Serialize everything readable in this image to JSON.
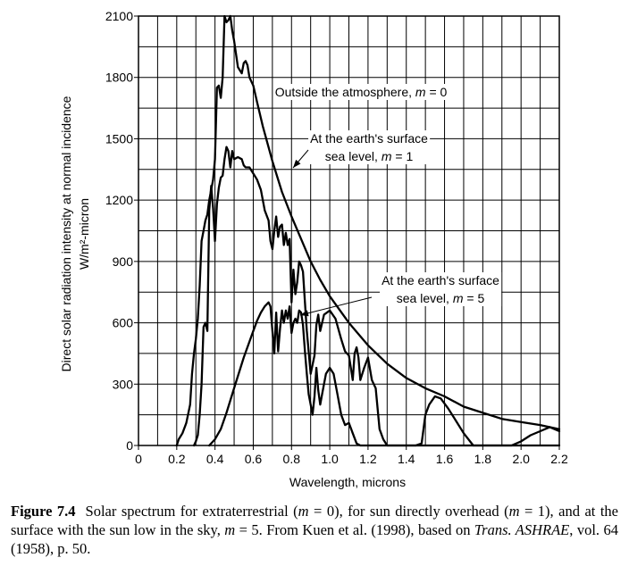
{
  "chart_data": {
    "type": "line",
    "xlabel": "Wavelength, microns",
    "ylabel_line1": "Direct solar radiation intensity at normal incidence",
    "ylabel_line2": "W/m²-micron",
    "xlim": [
      0,
      2.2
    ],
    "ylim": [
      0,
      2100
    ],
    "x_ticks": [
      "0",
      "0.2",
      "0.4",
      "0.6",
      "0.8",
      "1.0",
      "1.2",
      "1.4",
      "1.6",
      "1.8",
      "2.0",
      "2.2"
    ],
    "y_ticks": [
      "0",
      "300",
      "600",
      "900",
      "1200",
      "1500",
      "1800",
      "2100"
    ],
    "grid": true,
    "annotations": [
      {
        "lines": [
          "Outside the atmosphere, m = 0"
        ],
        "series": "m0"
      },
      {
        "lines": [
          "At the earth's surface",
          "sea level, m = 1"
        ],
        "series": "m1"
      },
      {
        "lines": [
          "At the earth's surface",
          "sea level, m = 5"
        ],
        "series": "m5"
      }
    ],
    "series": [
      {
        "name": "Outside the atmosphere, m = 0",
        "key": "m0",
        "x": [
          0.2,
          0.21,
          0.23,
          0.25,
          0.27,
          0.28,
          0.29,
          0.3,
          0.31,
          0.32,
          0.33,
          0.34,
          0.35,
          0.36,
          0.37,
          0.38,
          0.39,
          0.4,
          0.41,
          0.42,
          0.43,
          0.44,
          0.45,
          0.46,
          0.47,
          0.48,
          0.49,
          0.5,
          0.52,
          0.54,
          0.55,
          0.56,
          0.57,
          0.58,
          0.6,
          0.62,
          0.65,
          0.7,
          0.75,
          0.8,
          0.85,
          0.9,
          0.95,
          1.0,
          1.1,
          1.2,
          1.3,
          1.4,
          1.5,
          1.6,
          1.7,
          1.8,
          1.9,
          2.0,
          2.1,
          2.2
        ],
        "y": [
          0,
          30,
          60,
          110,
          200,
          350,
          450,
          520,
          620,
          780,
          1000,
          1050,
          1100,
          1130,
          1200,
          1250,
          1300,
          1400,
          1750,
          1760,
          1700,
          1800,
          2100,
          2070,
          2080,
          2100,
          2030,
          1980,
          1850,
          1820,
          1870,
          1880,
          1860,
          1800,
          1760,
          1680,
          1560,
          1390,
          1240,
          1120,
          1010,
          900,
          810,
          730,
          600,
          490,
          400,
          330,
          280,
          240,
          190,
          160,
          130,
          115,
          100,
          80
        ]
      },
      {
        "name": "At the earth's surface, sea level, m = 1",
        "key": "m1",
        "x": [
          0.29,
          0.3,
          0.31,
          0.32,
          0.33,
          0.34,
          0.35,
          0.36,
          0.37,
          0.38,
          0.39,
          0.4,
          0.41,
          0.42,
          0.43,
          0.44,
          0.45,
          0.46,
          0.47,
          0.48,
          0.49,
          0.5,
          0.52,
          0.54,
          0.55,
          0.56,
          0.58,
          0.6,
          0.62,
          0.64,
          0.66,
          0.68,
          0.69,
          0.7,
          0.71,
          0.72,
          0.73,
          0.74,
          0.75,
          0.76,
          0.77,
          0.78,
          0.79,
          0.8,
          0.81,
          0.82,
          0.83,
          0.84,
          0.85,
          0.86,
          0.87,
          0.88,
          0.9,
          0.92,
          0.93,
          0.94,
          0.95,
          0.97,
          1.0,
          1.03,
          1.06,
          1.08,
          1.1,
          1.12,
          1.13,
          1.14,
          1.15,
          1.16,
          1.18,
          1.2,
          1.22,
          1.24,
          1.26,
          1.28,
          1.3,
          1.33,
          1.35,
          1.4,
          1.45,
          1.48,
          1.5,
          1.52,
          1.55,
          1.58,
          1.62,
          1.66,
          1.7,
          1.75,
          1.8,
          1.85,
          1.9,
          1.95,
          2.0,
          2.05,
          2.1,
          2.15,
          2.2
        ],
        "y": [
          0,
          20,
          50,
          150,
          300,
          580,
          600,
          560,
          1150,
          1270,
          1160,
          1000,
          1180,
          1260,
          1310,
          1320,
          1400,
          1460,
          1440,
          1360,
          1440,
          1400,
          1410,
          1400,
          1370,
          1360,
          1360,
          1330,
          1300,
          1250,
          1150,
          1100,
          1000,
          960,
          1050,
          1120,
          1020,
          1070,
          1080,
          980,
          1040,
          980,
          1010,
          700,
          860,
          740,
          800,
          900,
          880,
          850,
          700,
          560,
          350,
          440,
          590,
          640,
          560,
          640,
          660,
          620,
          520,
          460,
          440,
          320,
          450,
          480,
          430,
          320,
          380,
          430,
          320,
          280,
          80,
          30,
          0,
          0,
          0,
          0,
          0,
          10,
          150,
          200,
          240,
          230,
          180,
          120,
          60,
          0,
          0,
          0,
          0,
          0,
          20,
          50,
          70,
          90,
          70
        ]
      },
      {
        "name": "At the earth's surface, sea level, m = 5",
        "key": "m5",
        "x": [
          0.37,
          0.4,
          0.43,
          0.46,
          0.5,
          0.55,
          0.6,
          0.62,
          0.64,
          0.66,
          0.67,
          0.68,
          0.69,
          0.7,
          0.71,
          0.72,
          0.73,
          0.74,
          0.75,
          0.76,
          0.77,
          0.78,
          0.79,
          0.8,
          0.81,
          0.82,
          0.83,
          0.84,
          0.85,
          0.86,
          0.87,
          0.88,
          0.89,
          0.9,
          0.91,
          0.92,
          0.93,
          0.94,
          0.95,
          0.96,
          0.98,
          1.0,
          1.02,
          1.04,
          1.06,
          1.08,
          1.1,
          1.12,
          1.14,
          1.16,
          1.18,
          1.2,
          1.22,
          1.24,
          1.26,
          1.28,
          1.3,
          1.33,
          1.36,
          1.4,
          1.45,
          1.48,
          1.5,
          1.52,
          1.55,
          1.58,
          1.62,
          1.66,
          1.7,
          1.75,
          1.8,
          1.85,
          1.9,
          1.95,
          2.0,
          2.05,
          2.1,
          2.15,
          2.2
        ],
        "y": [
          0,
          30,
          80,
          160,
          280,
          430,
          560,
          610,
          650,
          680,
          690,
          700,
          680,
          560,
          450,
          650,
          460,
          570,
          660,
          600,
          660,
          620,
          680,
          550,
          600,
          620,
          600,
          660,
          650,
          590,
          460,
          350,
          250,
          200,
          150,
          240,
          380,
          270,
          200,
          250,
          350,
          380,
          350,
          250,
          150,
          100,
          110,
          60,
          10,
          0,
          0,
          0,
          0,
          0,
          0,
          0,
          0,
          0,
          0,
          0,
          0,
          0,
          0,
          0,
          0,
          0,
          0,
          0,
          0,
          0,
          0,
          0,
          0,
          0,
          0,
          0,
          0,
          0,
          0
        ]
      }
    ]
  },
  "caption": {
    "label": "Figure 7.4",
    "segments": [
      {
        "t": "Solar spectrum for extraterrestrial (",
        "s": "n"
      },
      {
        "t": "m",
        "s": "i"
      },
      {
        "t": " = 0), for sun directly overhead (",
        "s": "n"
      },
      {
        "t": "m",
        "s": "i"
      },
      {
        "t": " = 1), and at the surface with the sun low in the sky, ",
        "s": "n"
      },
      {
        "t": "m",
        "s": "i"
      },
      {
        "t": " = 5. From Kuen et al. (1998), based on ",
        "s": "n"
      },
      {
        "t": "Trans. ASHRAE",
        "s": "i"
      },
      {
        "t": ", vol. 64 (1958), p. 50.",
        "s": "n"
      }
    ]
  }
}
